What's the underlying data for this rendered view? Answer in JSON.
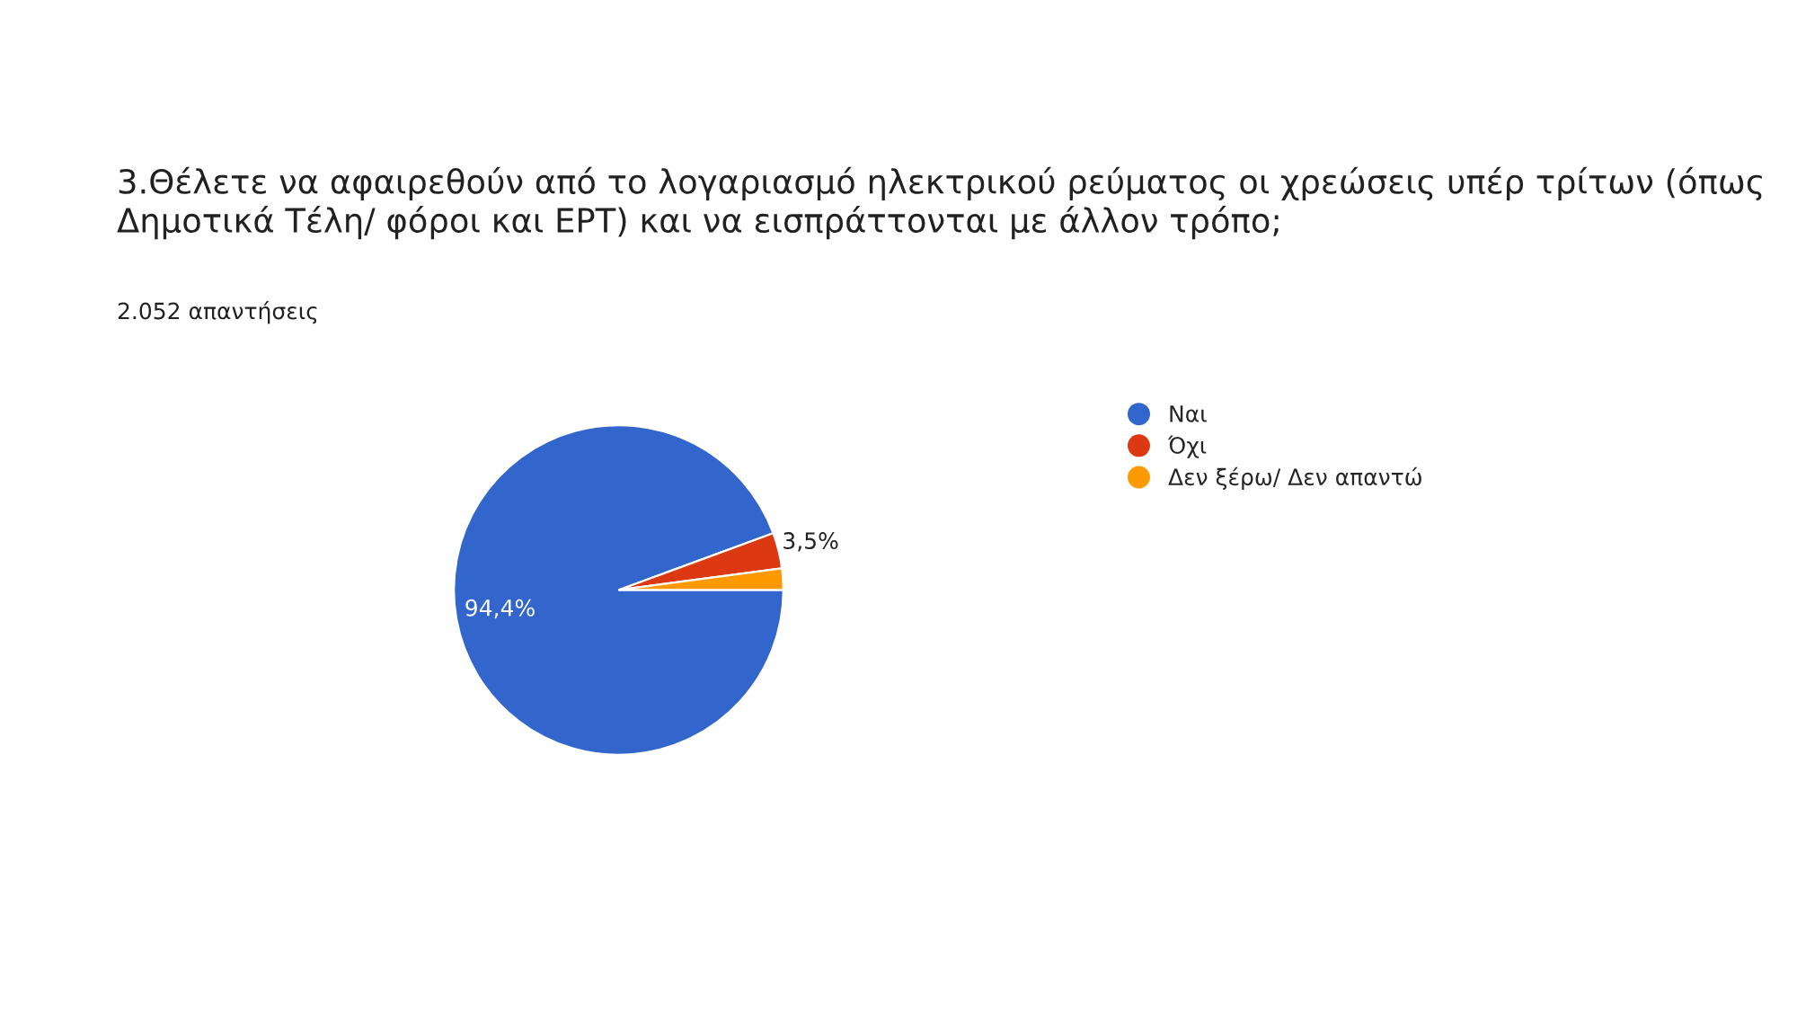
{
  "chart_data": {
    "type": "pie",
    "title": "3.Θέλετε να αφαιρεθούν από το λογαριασμό ηλεκτρικού ρεύματος οι χρεώσεις υπέρ τρίτων (όπως Δημοτικά Τέλη/ φόροι και ΕΡΤ) και να εισπράττονται με άλλον τρόπο;",
    "subtitle": "2.052 απαντήσεις",
    "categories": [
      "Ναι",
      "Όχι",
      "Δεν ξέρω/ Δεν απαντώ"
    ],
    "values": [
      94.4,
      3.5,
      2.1
    ],
    "colors": [
      "#3366cc",
      "#dc3912",
      "#ff9900"
    ],
    "value_labels": [
      "94,4%",
      "3,5%",
      null
    ],
    "legend": "right"
  }
}
